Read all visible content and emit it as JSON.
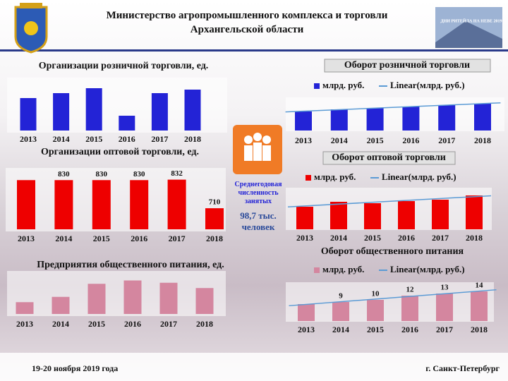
{
  "header": {
    "title_line1": "Министерство агропромышленного комплекса и торговли",
    "title_line2": "Архангельской области"
  },
  "promo": "ДНИ РИТЕЙЛА НА НЕВЕ 2019",
  "employment": {
    "label": "Среднегодовая численность занятых",
    "value": "98,7 тыс. человек"
  },
  "footer": {
    "date": "19-20 ноября 2019 года",
    "city": "г. Санкт-Петербург"
  },
  "chart_data": [
    {
      "type": "bar",
      "title": "Организации розничной торговли, ед.",
      "categories": [
        "2013",
        "2014",
        "2015",
        "2016",
        "2017",
        "2018"
      ],
      "values": [
        46,
        53,
        60,
        21,
        53,
        58
      ],
      "color": "#2323d6",
      "ylim": [
        0,
        70
      ]
    },
    {
      "type": "bar",
      "title": "Организации оптовой торговли, ед.",
      "categories": [
        "2013",
        "2014",
        "2015",
        "2016",
        "2017",
        "2018"
      ],
      "values": [
        830,
        830,
        830,
        830,
        832,
        710
      ],
      "value_labels": [
        null,
        "830",
        "830",
        "830",
        "832",
        "710"
      ],
      "color": "#ee0000",
      "ylim": [
        620,
        870
      ]
    },
    {
      "type": "bar",
      "title": "Предприятия общественного питания, ед.",
      "categories": [
        "2013",
        "2014",
        "2015",
        "2016",
        "2017",
        "2018"
      ],
      "values": [
        1087,
        1117,
        1191,
        1210,
        1197,
        1167
      ],
      "color": "#d4869f",
      "ylim": [
        1020,
        1260
      ]
    },
    {
      "type": "bar",
      "title": "Оборот розничной торговли",
      "categories": [
        "2013",
        "2014",
        "2015",
        "2016",
        "2017",
        "2018"
      ],
      "series": [
        {
          "name": "млрд. руб.",
          "color": "#2323d6",
          "values": [
            27,
            30,
            32,
            34,
            36,
            38
          ]
        }
      ],
      "trend_name": "Linear(млрд. руб.)",
      "ylim": [
        0,
        50
      ]
    },
    {
      "type": "bar",
      "title": "Оборот оптовой торговли",
      "categories": [
        "2013",
        "2014",
        "2015",
        "2016",
        "2017",
        "2018"
      ],
      "series": [
        {
          "name": "млрд. руб.",
          "color": "#ee0000",
          "values": [
            32,
            39,
            37,
            40,
            42,
            48
          ]
        }
      ],
      "trend_name": "Linear(млрд. руб.)",
      "ylim": [
        0,
        60
      ]
    },
    {
      "type": "bar",
      "title": "Оборот общественного питания",
      "categories": [
        "2013",
        "2014",
        "2015",
        "2016",
        "2017",
        "2018"
      ],
      "series": [
        {
          "name": "млрд. руб.",
          "color": "#d4869f",
          "values": [
            8,
            9,
            10,
            12,
            13,
            14
          ],
          "value_labels": [
            null,
            "9",
            "10",
            "12",
            "13",
            "14"
          ]
        }
      ],
      "trend_name": "Linear(млрд. руб.)",
      "ylim": [
        0,
        18
      ]
    }
  ]
}
